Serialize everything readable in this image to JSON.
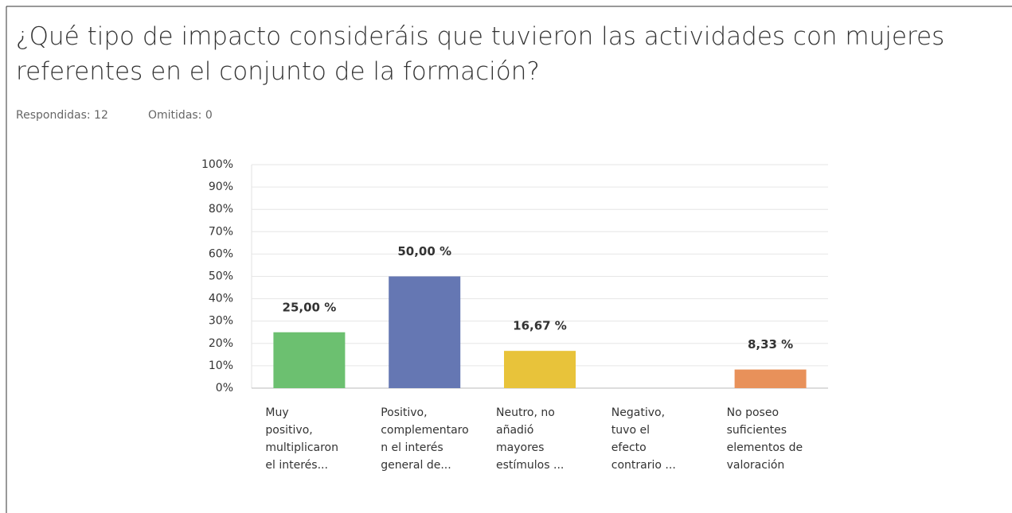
{
  "chart_data": {
    "type": "bar",
    "title": [
      "¿Qué tipo de impacto consideráis que tuvieron las actividades con mujeres",
      "referentes en el conjunto de la formación?"
    ],
    "answered": "Respondidas: 12",
    "skipped": "Omitidas: 0",
    "categories": [
      [
        "Muy",
        "positivo,",
        "multiplicaron",
        "el interés..."
      ],
      [
        "Positivo,",
        "complementaro",
        "n el interés",
        "general de..."
      ],
      [
        "Neutro, no",
        "añadió",
        "mayores",
        "estímulos ..."
      ],
      [
        "Negativo,",
        "tuvo el",
        "efecto",
        "contrario ..."
      ],
      [
        "No poseo",
        "suficientes",
        "elementos de",
        "valoración"
      ]
    ],
    "values": [
      25,
      50,
      16.67,
      0,
      8.33
    ],
    "value_labels": [
      "25,00 %",
      "50,00 %",
      "16,67 %",
      null,
      "8,33 %"
    ],
    "colors": [
      "#6cc070",
      "#6577b3",
      "#e8c33a",
      "#999999",
      "#e8915a"
    ],
    "ylim": [
      0,
      100
    ],
    "yticks": [
      {
        "value": 0,
        "label": "0%"
      },
      {
        "value": 10,
        "label": "10%"
      },
      {
        "value": 20,
        "label": "20%"
      },
      {
        "value": 30,
        "label": "30%"
      },
      {
        "value": 40,
        "label": "40%"
      },
      {
        "value": 50,
        "label": "50%"
      },
      {
        "value": 60,
        "label": "60%"
      },
      {
        "value": 70,
        "label": "70%"
      },
      {
        "value": 80,
        "label": "80%"
      },
      {
        "value": 90,
        "label": "90%"
      },
      {
        "value": 100,
        "label": "100%"
      }
    ],
    "grid": true
  }
}
